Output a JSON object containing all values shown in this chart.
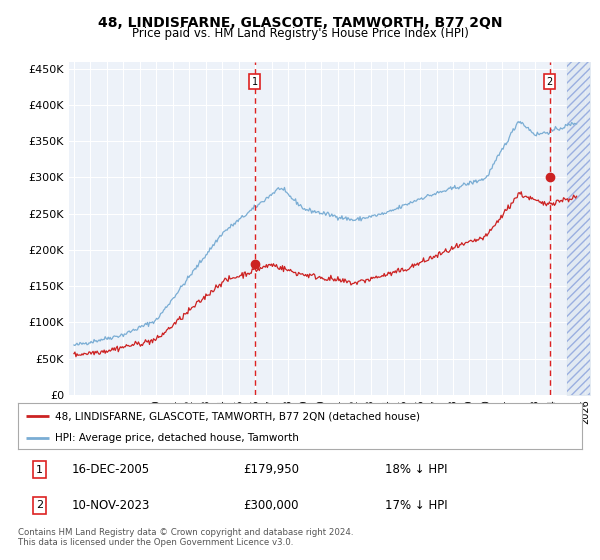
{
  "title": "48, LINDISFARNE, GLASCOTE, TAMWORTH, B77 2QN",
  "subtitle": "Price paid vs. HM Land Registry's House Price Index (HPI)",
  "legend_line1": "48, LINDISFARNE, GLASCOTE, TAMWORTH, B77 2QN (detached house)",
  "legend_line2": "HPI: Average price, detached house, Tamworth",
  "annotation1_label": "1",
  "annotation1_date": "16-DEC-2005",
  "annotation1_price": "£179,950",
  "annotation1_pct": "18% ↓ HPI",
  "annotation2_label": "2",
  "annotation2_date": "10-NOV-2023",
  "annotation2_price": "£300,000",
  "annotation2_pct": "17% ↓ HPI",
  "footer": "Contains HM Land Registry data © Crown copyright and database right 2024.\nThis data is licensed under the Open Government Licence v3.0.",
  "hpi_color": "#7aadd4",
  "price_color": "#cc2222",
  "annotation_color": "#dd2222",
  "background_plot": "#edf2f9",
  "background_fig": "#ffffff",
  "grid_color": "#ffffff",
  "ylim": [
    0,
    460000
  ],
  "yticks": [
    0,
    50000,
    100000,
    150000,
    200000,
    250000,
    300000,
    350000,
    400000,
    450000
  ],
  "xlim_start": 1994.7,
  "xlim_end": 2026.3,
  "marker1_year": 2005.96,
  "marker1_value": 179950,
  "marker2_year": 2023.87,
  "marker2_value": 300000,
  "hatch_start": 2024.9
}
